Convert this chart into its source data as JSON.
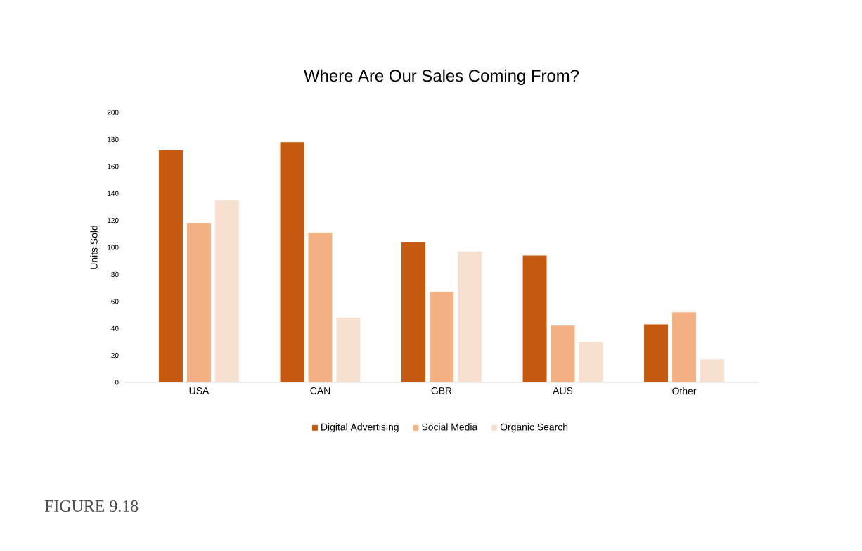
{
  "chart_data": {
    "type": "bar",
    "title": "Where Are Our Sales Coming From?",
    "ylabel": "Units Sold",
    "categories": [
      "USA",
      "CAN",
      "GBR",
      "AUS",
      "Other"
    ],
    "series": [
      {
        "name": "Digital Advertising",
        "color": "#c55a11",
        "values": [
          172,
          178,
          104,
          94,
          43
        ]
      },
      {
        "name": "Social Media",
        "color": "#f4b183",
        "values": [
          118,
          111,
          67,
          42,
          52
        ]
      },
      {
        "name": "Organic Search",
        "color": "#f8e0d0",
        "values": [
          135,
          48,
          97,
          30,
          17
        ]
      }
    ],
    "ylim": [
      0,
      200
    ],
    "yticks": [
      0,
      20,
      40,
      60,
      80,
      100,
      120,
      140,
      160,
      180,
      200
    ],
    "legend": "bottom",
    "annotations": [
      "FIGURE 9.18"
    ]
  }
}
